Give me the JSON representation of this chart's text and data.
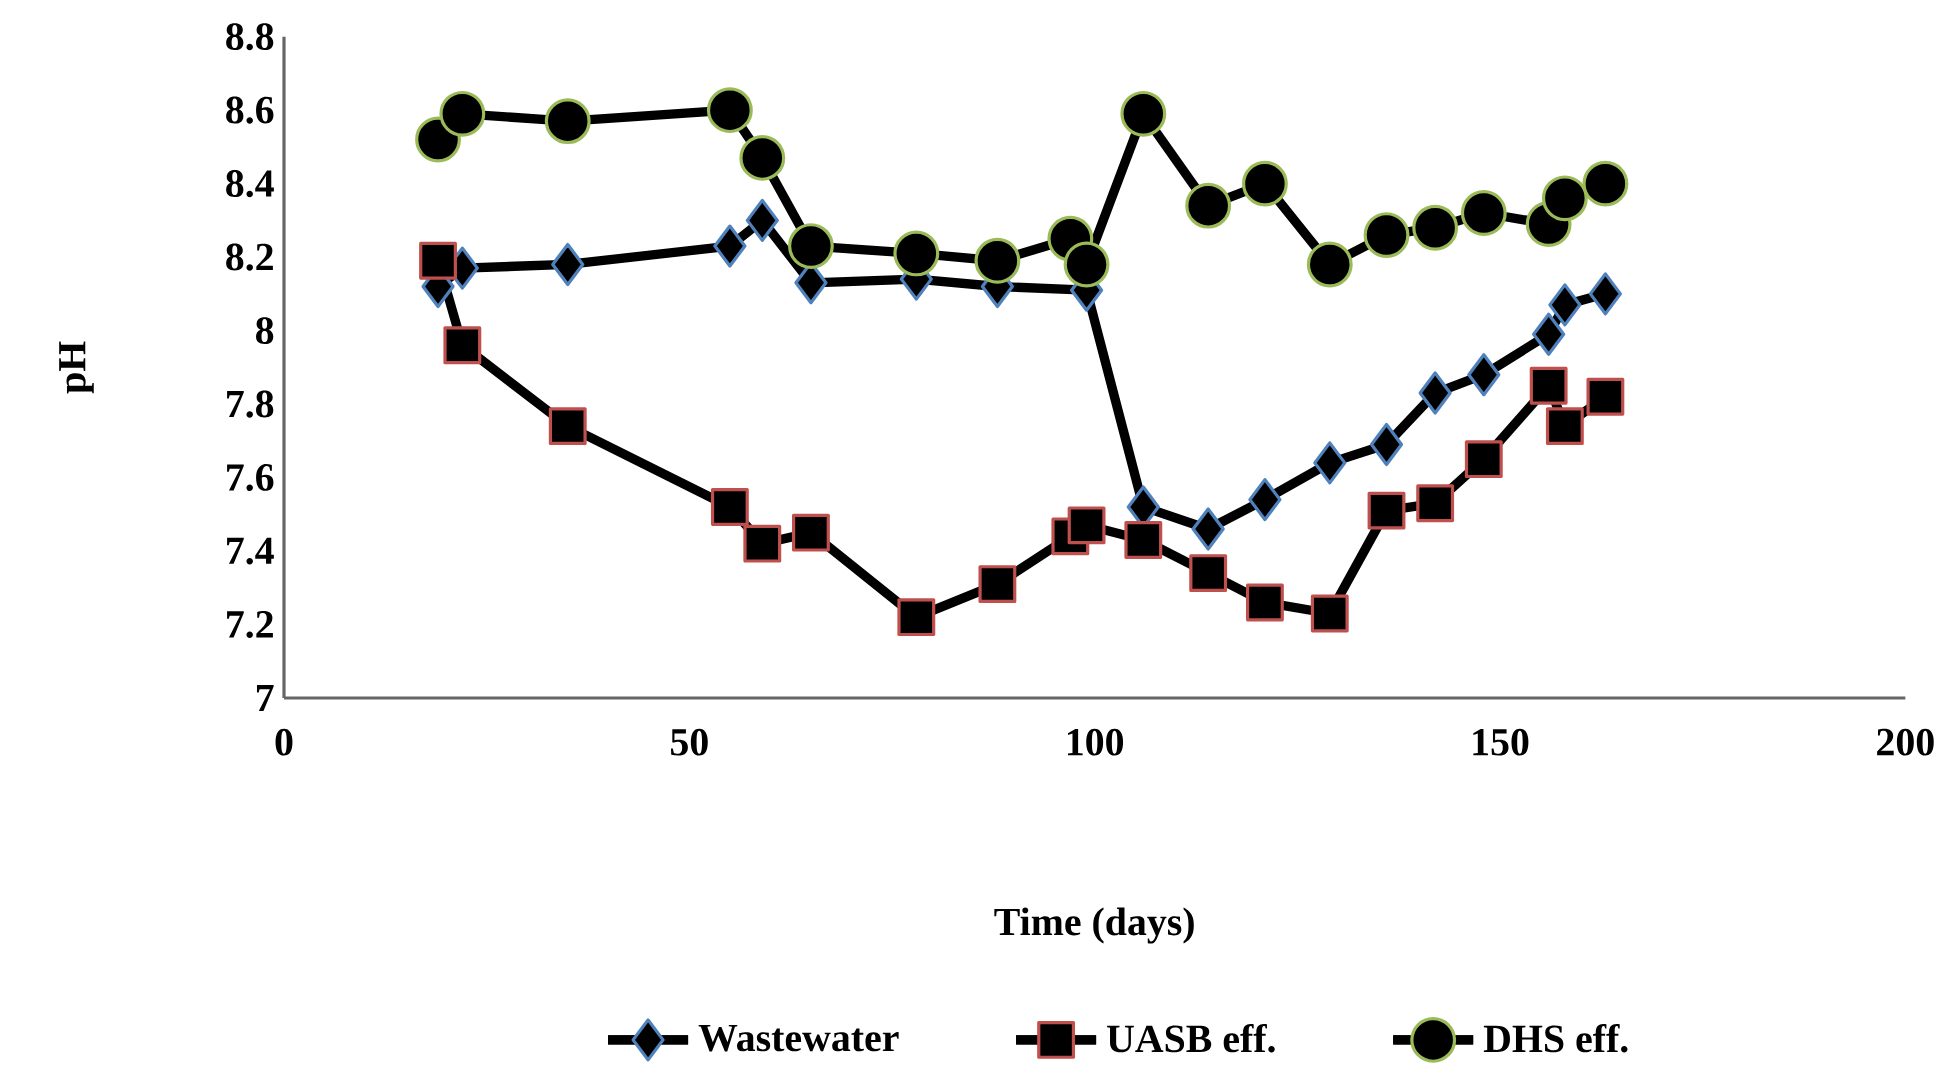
{
  "chart_data": {
    "type": "line",
    "xlabel": "Time (days)",
    "ylabel": "pH",
    "xlim": [
      0,
      200
    ],
    "xticks": [
      0,
      50,
      100,
      150,
      200
    ],
    "ylim": [
      7,
      8.8
    ],
    "yticks": [
      7,
      7.2,
      7.4,
      7.6,
      7.8,
      8,
      8.2,
      8.4,
      8.6,
      8.8
    ],
    "legend": "bottom",
    "series": [
      {
        "name": "Wastewater",
        "color": "#4f81bd",
        "marker": "diamond",
        "x": [
          19,
          22,
          35,
          55,
          59,
          65,
          78,
          88,
          97,
          99,
          106,
          114,
          121,
          129,
          136,
          142,
          148,
          156,
          158,
          163
        ],
        "values": [
          8.12,
          8.17,
          8.18,
          8.23,
          8.3,
          8.13,
          8.14,
          8.12,
          null,
          8.11,
          7.52,
          7.46,
          7.54,
          7.64,
          7.69,
          7.83,
          7.88,
          7.99,
          8.07,
          8.1
        ]
      },
      {
        "name": "UASB eff.",
        "color": "#c0504d",
        "marker": "square",
        "x": [
          19,
          22,
          35,
          55,
          59,
          65,
          78,
          88,
          97,
          99,
          106,
          114,
          121,
          129,
          136,
          142,
          148,
          156,
          158,
          163
        ],
        "values": [
          8.19,
          7.96,
          7.74,
          7.52,
          7.42,
          7.45,
          7.22,
          7.31,
          7.44,
          7.47,
          7.43,
          7.34,
          7.26,
          7.23,
          7.51,
          7.53,
          7.65,
          7.85,
          7.74,
          7.82
        ]
      },
      {
        "name": "DHS eff.",
        "color": "#9bbb59",
        "marker": "circle",
        "x": [
          19,
          22,
          35,
          55,
          59,
          65,
          78,
          88,
          97,
          99,
          106,
          114,
          121,
          129,
          136,
          142,
          148,
          156,
          158,
          163
        ],
        "values": [
          8.52,
          8.59,
          8.57,
          8.6,
          8.47,
          8.23,
          8.21,
          8.19,
          8.25,
          8.18,
          8.59,
          8.34,
          8.4,
          8.18,
          8.26,
          8.28,
          8.32,
          8.29,
          8.36,
          8.4
        ]
      }
    ]
  }
}
